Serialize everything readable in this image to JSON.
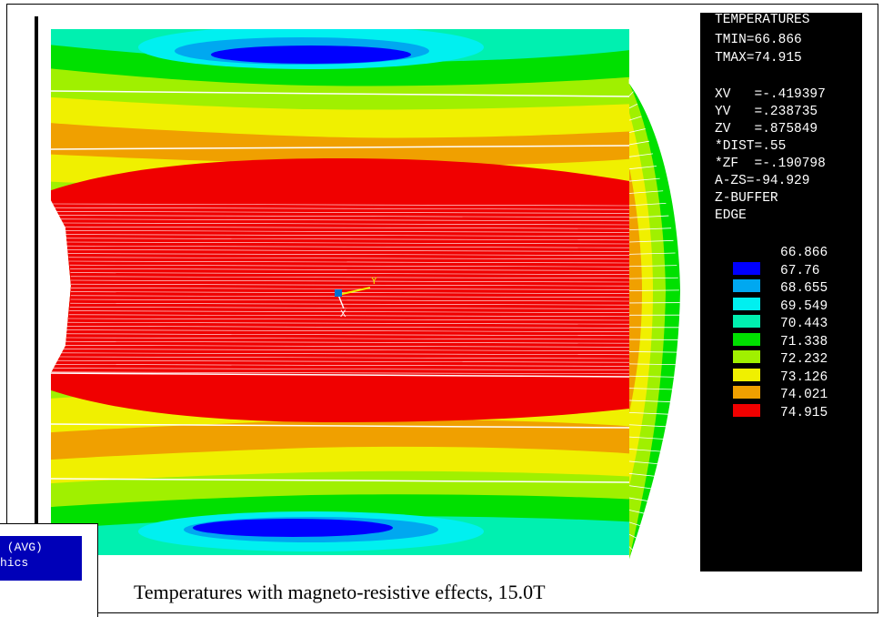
{
  "legend": {
    "title": "TEMPERATURES",
    "tmin": "TMIN=66.866",
    "tmax": "TMAX=74.915",
    "view_params": [
      "XV   =-.419397",
      "YV   =.238735",
      "ZV   =.875849",
      "*DIST=.55",
      "*ZF  =-.190798",
      "A-ZS=-94.929",
      "Z-BUFFER",
      "EDGE"
    ],
    "levels": [
      {
        "value": "66.866",
        "color": null
      },
      {
        "value": "67.76",
        "color": "#0000ff"
      },
      {
        "value": "68.655",
        "color": "#00a8f0"
      },
      {
        "value": "69.549",
        "color": "#00f0f0"
      },
      {
        "value": "70.443",
        "color": "#00f0b0"
      },
      {
        "value": "71.338",
        "color": "#00e000"
      },
      {
        "value": "72.232",
        "color": "#a0f000"
      },
      {
        "value": "73.126",
        "color": "#f0f000"
      },
      {
        "value": "74.021",
        "color": "#f0a000"
      },
      {
        "value": "74.915",
        "color": "#f00000"
      }
    ]
  },
  "header_box": {
    "lines": [
      " (AVG)",
      "hics"
    ]
  },
  "triad": {
    "y_label": "Y",
    "x_label": "X"
  },
  "caption": "Temperatures with magneto-resistive effects, 15.0T"
}
